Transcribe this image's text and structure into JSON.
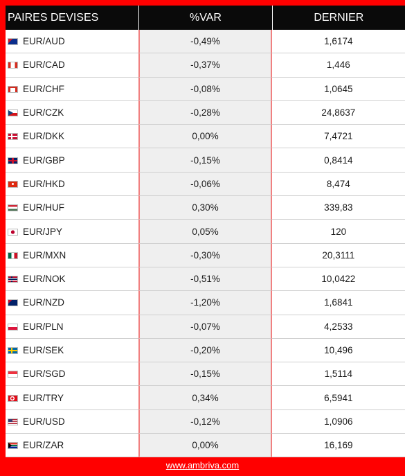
{
  "header": {
    "col_pair": "PAIRES DEVISES",
    "col_var": "%VAR",
    "col_last": "DERNIER"
  },
  "rows": [
    {
      "pair": "EUR/AUD",
      "var": "-0,49%",
      "last": "1,6174",
      "flag_icon": "australia-flag-icon"
    },
    {
      "pair": "EUR/CAD",
      "var": "-0,37%",
      "last": "1,446",
      "flag_icon": "canada-flag-icon"
    },
    {
      "pair": "EUR/CHF",
      "var": "-0,08%",
      "last": "1,0645",
      "flag_icon": "switzerland-flag-icon"
    },
    {
      "pair": "EUR/CZK",
      "var": "-0,28%",
      "last": "24,8637",
      "flag_icon": "czech-flag-icon"
    },
    {
      "pair": "EUR/DKK",
      "var": "0,00%",
      "last": "7,4721",
      "flag_icon": "denmark-flag-icon"
    },
    {
      "pair": "EUR/GBP",
      "var": "-0,15%",
      "last": "0,8414",
      "flag_icon": "uk-flag-icon"
    },
    {
      "pair": "EUR/HKD",
      "var": "-0,06%",
      "last": "8,474",
      "flag_icon": "hong-kong-flag-icon"
    },
    {
      "pair": "EUR/HUF",
      "var": "0,30%",
      "last": "339,83",
      "flag_icon": "hungary-flag-icon"
    },
    {
      "pair": "EUR/JPY",
      "var": "0,05%",
      "last": "120",
      "flag_icon": "japan-flag-icon"
    },
    {
      "pair": "EUR/MXN",
      "var": "-0,30%",
      "last": "20,3111",
      "flag_icon": "mexico-flag-icon"
    },
    {
      "pair": "EUR/NOK",
      "var": "-0,51%",
      "last": "10,0422",
      "flag_icon": "norway-flag-icon"
    },
    {
      "pair": "EUR/NZD",
      "var": "-1,20%",
      "last": "1,6841",
      "flag_icon": "new-zealand-flag-icon"
    },
    {
      "pair": "EUR/PLN",
      "var": "-0,07%",
      "last": "4,2533",
      "flag_icon": "poland-flag-icon"
    },
    {
      "pair": "EUR/SEK",
      "var": "-0,20%",
      "last": "10,496",
      "flag_icon": "sweden-flag-icon"
    },
    {
      "pair": "EUR/SGD",
      "var": "-0,15%",
      "last": "1,5114",
      "flag_icon": "singapore-flag-icon"
    },
    {
      "pair": "EUR/TRY",
      "var": "0,34%",
      "last": "6,5941",
      "flag_icon": "turkey-flag-icon"
    },
    {
      "pair": "EUR/USD",
      "var": "-0,12%",
      "last": "1,0906",
      "flag_icon": "usa-flag-icon"
    },
    {
      "pair": "EUR/ZAR",
      "var": "0,00%",
      "last": "16,169",
      "flag_icon": "south-africa-flag-icon"
    }
  ],
  "footer": {
    "link": "www.ambriva.com"
  },
  "colors": {
    "frame": "#ff0000",
    "header_bg": "#0a0a0a",
    "var_col_bg": "#efefef",
    "divider": "#f08080"
  }
}
